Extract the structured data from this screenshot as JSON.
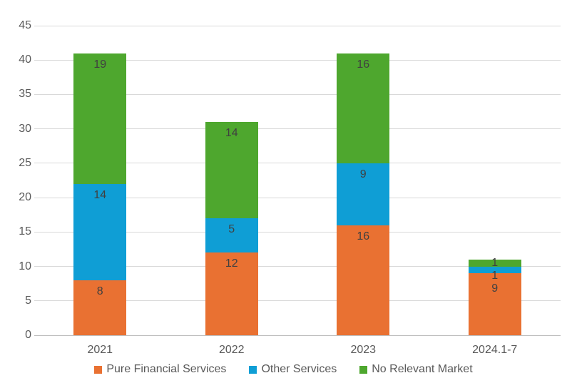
{
  "chart_data": {
    "type": "bar",
    "stacked": true,
    "title": "",
    "xlabel": "",
    "ylabel": "",
    "categories": [
      "2021",
      "2022",
      "2023",
      "2024.1-7"
    ],
    "series": [
      {
        "name": "Pure Financial Services",
        "color": "#E97132",
        "values": [
          8,
          12,
          16,
          9
        ]
      },
      {
        "name": "Other Services",
        "color": "#0F9ED5",
        "values": [
          14,
          5,
          9,
          1
        ]
      },
      {
        "name": "No Relevant Market",
        "color": "#4EA72E",
        "values": [
          19,
          14,
          16,
          1
        ]
      }
    ],
    "totals": [
      41,
      31,
      41,
      11
    ],
    "ylim": [
      0,
      45
    ],
    "ytick_step": 5,
    "ytick_labels": [
      "0",
      "5",
      "10",
      "15",
      "20",
      "25",
      "30",
      "35",
      "40",
      "45"
    ],
    "grid": true,
    "gridline_color": "#D9D9D9",
    "axis_line_color": "#BFBFBF",
    "tick_label_color": "#595959",
    "data_label_color": "#404040",
    "legend_position": "bottom",
    "data_labels": "inside-end"
  },
  "legend": {
    "items": [
      {
        "label": "Pure Financial Services",
        "color": "#E97132"
      },
      {
        "label": "Other Services",
        "color": "#0F9ED5"
      },
      {
        "label": "No Relevant Market",
        "color": "#4EA72E"
      }
    ]
  }
}
